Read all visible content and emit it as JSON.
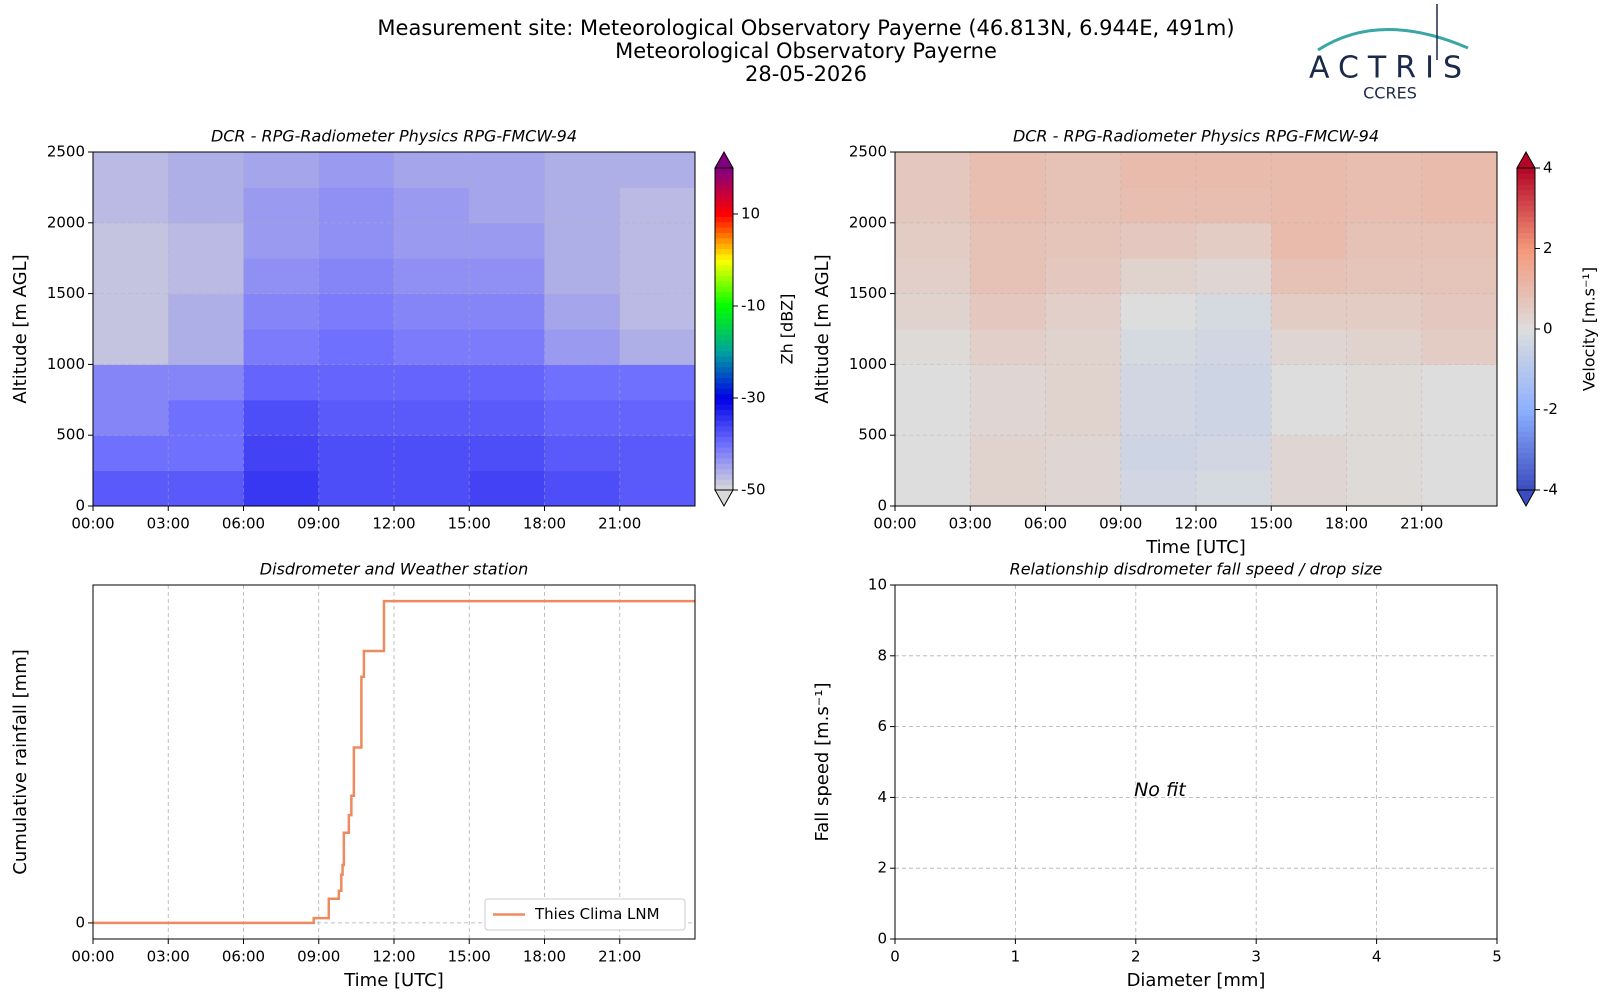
{
  "header": {
    "title": "Measurement site: Meteorological Observatory Payerne (46.813N, 6.944E, 491m)",
    "subtitle": "Meteorological Observatory Payerne",
    "date": "28-05-2026",
    "logo": {
      "name": "ACTRIS",
      "sub": "CCRES"
    }
  },
  "chart_data": [
    {
      "type": "heatmap",
      "title": "DCR - RPG-Radiometer Physics RPG-FMCW-94",
      "ylabel": "Altitude [m AGL]",
      "xlim": [
        0,
        24
      ],
      "xticks": [
        {
          "value": 0,
          "label": "00:00"
        },
        {
          "value": 3,
          "label": "03:00"
        },
        {
          "value": 6,
          "label": "06:00"
        },
        {
          "value": 9,
          "label": "09:00"
        },
        {
          "value": 12,
          "label": "12:00"
        },
        {
          "value": 15,
          "label": "15:00"
        },
        {
          "value": 18,
          "label": "18:00"
        },
        {
          "value": 21,
          "label": "21:00"
        }
      ],
      "ylim": [
        0,
        2500
      ],
      "yticks": [
        0,
        500,
        1000,
        1500,
        2000,
        2500
      ],
      "grid": true,
      "x_edges": [
        0,
        3,
        6,
        9,
        12,
        15,
        18,
        21,
        24
      ],
      "y_edges": [
        0,
        250,
        500,
        750,
        1000,
        1250,
        1500,
        1750,
        2000,
        2250,
        2500
      ],
      "values": [
        [
          -38,
          -38,
          -35,
          -37,
          -37,
          -36,
          -37,
          -38
        ],
        [
          -40,
          -40,
          -36,
          -37,
          -37,
          -37,
          -38,
          -38
        ],
        [
          -42,
          -40,
          -37,
          -38,
          -38,
          -38,
          -39,
          -39
        ],
        [
          -42,
          -42,
          -39,
          -39,
          -39,
          -39,
          -40,
          -40
        ],
        [
          -48,
          -46,
          -41,
          -40,
          -41,
          -41,
          -44,
          -46
        ],
        [
          -48,
          -46,
          -42,
          -41,
          -42,
          -42,
          -45,
          -47
        ],
        [
          -48,
          -47,
          -43,
          -42,
          -43,
          -43,
          -46,
          -47
        ],
        [
          -48,
          -47,
          -44,
          -43,
          -44,
          -44,
          -46,
          -47
        ],
        [
          -47,
          -46,
          -44,
          -43,
          -44,
          -45,
          -46,
          -47
        ],
        [
          -47,
          -46,
          -45,
          -44,
          -45,
          -45,
          -46,
          -46
        ]
      ],
      "colorbar": {
        "label": "Zh [dBZ]",
        "lim": [
          -50,
          20
        ],
        "ticks": [
          -50,
          -30,
          -10,
          10
        ],
        "colormap": [
          "#d9d9d9",
          "#7070ff",
          "#0000e6",
          "#00a0a0",
          "#00ff00",
          "#ffff00",
          "#ff0000",
          "#800080"
        ]
      }
    },
    {
      "type": "heatmap",
      "title": "DCR - RPG-Radiometer Physics RPG-FMCW-94",
      "ylabel": "Altitude [m AGL]",
      "xlabel": "Time [UTC]",
      "xlim": [
        0,
        24
      ],
      "xticks": [
        {
          "value": 0,
          "label": "00:00"
        },
        {
          "value": 3,
          "label": "03:00"
        },
        {
          "value": 6,
          "label": "06:00"
        },
        {
          "value": 9,
          "label": "09:00"
        },
        {
          "value": 12,
          "label": "12:00"
        },
        {
          "value": 15,
          "label": "15:00"
        },
        {
          "value": 18,
          "label": "18:00"
        },
        {
          "value": 21,
          "label": "21:00"
        }
      ],
      "ylim": [
        0,
        2500
      ],
      "yticks": [
        0,
        500,
        1000,
        1500,
        2000,
        2500
      ],
      "grid": true,
      "x_edges": [
        0,
        3,
        6,
        9,
        12,
        15,
        18,
        21,
        24
      ],
      "y_edges": [
        0,
        250,
        500,
        750,
        1000,
        1250,
        1500,
        1750,
        2000,
        2250,
        2500
      ],
      "values": [
        [
          0,
          0.3,
          0.2,
          -0.3,
          -0.2,
          0.2,
          0.1,
          0
        ],
        [
          0,
          0.3,
          0.2,
          -0.4,
          -0.3,
          0.2,
          0.1,
          0
        ],
        [
          0,
          0.2,
          0.3,
          -0.3,
          -0.4,
          0,
          0.1,
          0
        ],
        [
          0,
          0.2,
          0.3,
          -0.3,
          -0.4,
          0,
          0.1,
          0
        ],
        [
          0.1,
          0.4,
          0.3,
          -0.2,
          -0.3,
          0.2,
          0.3,
          0.5
        ],
        [
          0.3,
          0.6,
          0.4,
          0,
          -0.2,
          0.5,
          0.5,
          0.6
        ],
        [
          0.4,
          0.8,
          0.6,
          0.3,
          0.2,
          0.8,
          0.7,
          0.7
        ],
        [
          0.5,
          0.8,
          0.7,
          0.6,
          0.5,
          1.0,
          0.8,
          0.8
        ],
        [
          0.6,
          0.9,
          0.8,
          0.9,
          0.9,
          1.0,
          0.9,
          1.0
        ],
        [
          0.6,
          0.9,
          0.8,
          1.0,
          1.0,
          1.0,
          0.9,
          1.0
        ]
      ],
      "colorbar": {
        "label": "Velocity [m.s⁻¹]",
        "lim": [
          -4,
          4
        ],
        "ticks": [
          -4,
          -2,
          0,
          2,
          4
        ],
        "colormap": [
          "#3b4cc0",
          "#8db0fe",
          "#dddddd",
          "#f4987a",
          "#b40426"
        ]
      }
    },
    {
      "type": "line",
      "title": "Disdrometer and Weather station",
      "ylabel": "Cumulative rainfall [mm]",
      "xlabel": "Time [UTC]",
      "xlim": [
        0,
        24
      ],
      "xticks": [
        {
          "value": 0,
          "label": "00:00"
        },
        {
          "value": 3,
          "label": "03:00"
        },
        {
          "value": 6,
          "label": "06:00"
        },
        {
          "value": 9,
          "label": "09:00"
        },
        {
          "value": 12,
          "label": "12:00"
        },
        {
          "value": 15,
          "label": "15:00"
        },
        {
          "value": 18,
          "label": "18:00"
        },
        {
          "value": 21,
          "label": "21:00"
        }
      ],
      "ylim": [
        -0.1,
        2.1
      ],
      "yticks": [
        0
      ],
      "grid": true,
      "legend": "lower right",
      "x": [
        0,
        8.8,
        9.4,
        9.8,
        9.9,
        9.95,
        10.0,
        10.2,
        10.3,
        10.4,
        10.7,
        10.8,
        11.6,
        24
      ],
      "series": [
        {
          "name": "Thies Clima LNM",
          "color": "#ee8a60",
          "values": [
            0,
            0.03,
            0.15,
            0.2,
            0.3,
            0.36,
            0.56,
            0.67,
            0.79,
            1.09,
            1.53,
            1.69,
            2.0,
            2.0
          ]
        }
      ]
    },
    {
      "type": "scatter",
      "title": "Relationship disdrometer fall speed / drop size",
      "ylabel": "Fall speed [m.s⁻¹]",
      "xlabel": "Diameter [mm]",
      "xlim": [
        0,
        5
      ],
      "xticks": [
        0,
        1,
        2,
        3,
        4,
        5
      ],
      "ylim": [
        0,
        10
      ],
      "yticks": [
        0,
        2,
        4,
        6,
        8,
        10
      ],
      "grid": true,
      "annotation": "No fit"
    }
  ]
}
